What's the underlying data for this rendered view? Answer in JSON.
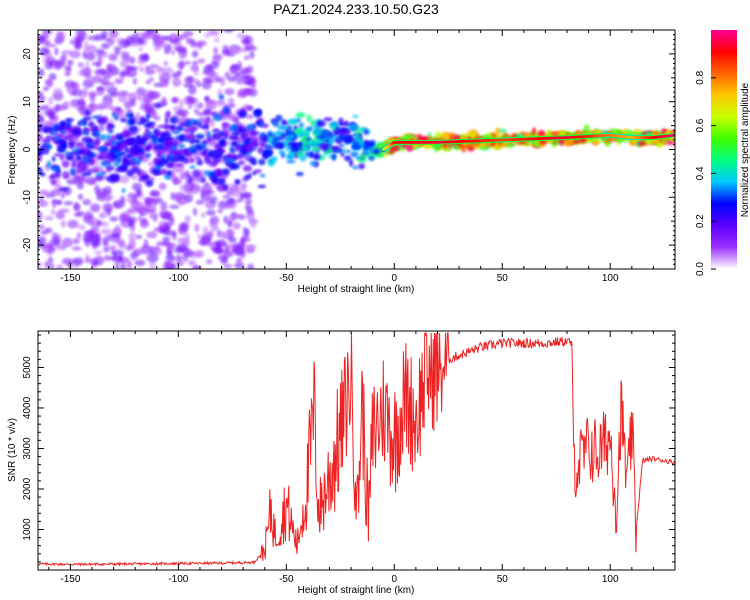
{
  "title": "PAZ1.2024.233.10.50.G23",
  "chart_data": [
    {
      "type": "heatmap",
      "xlabel": "Height of straight line (km)",
      "ylabel": "Frequency (Hz)",
      "xlim": [
        -165,
        130
      ],
      "ylim": [
        -25,
        25
      ],
      "x_ticks": [
        -150,
        -100,
        -50,
        0,
        50,
        100
      ],
      "y_ticks": [
        -20,
        -10,
        0,
        10,
        20
      ],
      "colorbar": {
        "label": "Normalized spectral amplitude",
        "range": [
          0,
          1
        ],
        "ticks": [
          0.0,
          0.2,
          0.4,
          0.6,
          0.8
        ],
        "colors": [
          "#ffffff",
          "#9b30ff",
          "#5a00ff",
          "#0000ff",
          "#00c8ff",
          "#00ff80",
          "#40ff00",
          "#c8ff00",
          "#ffc800",
          "#ff6400",
          "#ff0000",
          "#ff0096"
        ]
      },
      "ridge": {
        "description_points_x": [
          -165,
          -120,
          -80,
          -60,
          -40,
          -20,
          -10,
          -5,
          0,
          20,
          50,
          80,
          100,
          110,
          120,
          130
        ],
        "frequency": [
          0.5,
          0.5,
          0.8,
          1.0,
          2.5,
          2.0,
          0.0,
          0.0,
          1.5,
          1.5,
          2.0,
          2.5,
          3.0,
          2.5,
          2.5,
          3.0
        ],
        "amplitude": [
          0.2,
          0.25,
          0.3,
          0.35,
          0.45,
          0.35,
          0.5,
          0.6,
          0.9,
          0.95,
          0.85,
          0.95,
          0.8,
          0.75,
          0.9,
          1.0
        ]
      }
    },
    {
      "type": "line",
      "xlabel": "Height of straight line (km)",
      "ylabel": "SNR (10 * v/v)",
      "xlim": [
        -165,
        130
      ],
      "ylim": [
        0,
        5900
      ],
      "x_ticks": [
        -150,
        -100,
        -50,
        0,
        50,
        100
      ],
      "y_ticks": [
        1000,
        2000,
        3000,
        4000,
        5000
      ],
      "color": "#ee2222",
      "series": [
        {
          "x": [
            -165,
            -150,
            -120,
            -100,
            -80,
            -65,
            -60,
            -57,
            -55,
            -50,
            -45,
            -40,
            -37,
            -35,
            -30,
            -25,
            -20,
            -17,
            -15,
            -12,
            -10,
            -5,
            0,
            5,
            10,
            15,
            20,
            25,
            30,
            40,
            50,
            60,
            70,
            80,
            82,
            83,
            85,
            90,
            95,
            100,
            103,
            105,
            108,
            110,
            112,
            115,
            120,
            125,
            130
          ],
          "y": [
            150,
            140,
            150,
            160,
            170,
            190,
            500,
            1500,
            800,
            1600,
            600,
            2200,
            4000,
            1400,
            2300,
            3300,
            4800,
            1500,
            4200,
            1200,
            3300,
            4000,
            3200,
            4300,
            3700,
            4900,
            4900,
            5200,
            5300,
            5500,
            5600,
            5600,
            5600,
            5650,
            5600,
            2700,
            2600,
            3000,
            2900,
            3300,
            1500,
            4000,
            2000,
            3500,
            1000,
            2700,
            2750,
            2700,
            2650
          ]
        }
      ]
    }
  ]
}
